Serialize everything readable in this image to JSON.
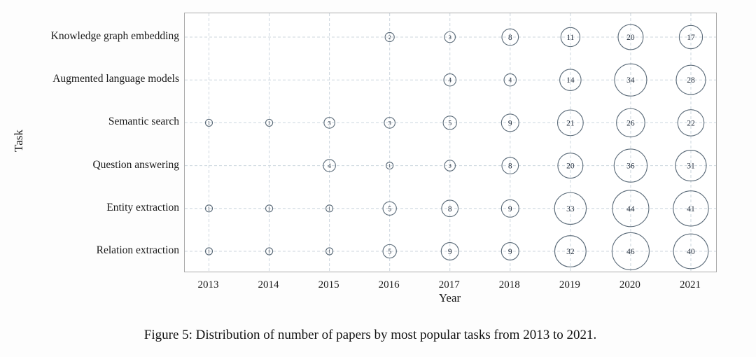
{
  "figure": {
    "caption": "Figure 5: Distribution of number of papers by most popular tasks from 2013 to 2021."
  },
  "chart_data": {
    "type": "scatter",
    "subtype": "bubble",
    "title": "",
    "xlabel": "Year",
    "ylabel": "Task",
    "x": [
      2013,
      2014,
      2015,
      2016,
      2017,
      2018,
      2019,
      2020,
      2021
    ],
    "series": [
      {
        "name": "Knowledge graph embedding",
        "values": [
          null,
          null,
          null,
          2,
          3,
          8,
          11,
          20,
          17
        ]
      },
      {
        "name": "Augmented language models",
        "values": [
          null,
          null,
          null,
          null,
          4,
          4,
          14,
          34,
          28
        ]
      },
      {
        "name": "Semantic search",
        "values": [
          1,
          1,
          3,
          3,
          5,
          9,
          21,
          26,
          22
        ]
      },
      {
        "name": "Question answering",
        "values": [
          null,
          null,
          4,
          1,
          3,
          8,
          20,
          36,
          31
        ]
      },
      {
        "name": "Entity extraction",
        "values": [
          1,
          1,
          1,
          5,
          8,
          9,
          33,
          44,
          41
        ]
      },
      {
        "name": "Relation extraction",
        "values": [
          1,
          1,
          1,
          5,
          9,
          9,
          32,
          46,
          40
        ]
      }
    ],
    "bubble_size_rule": "radius proportional to sqrt(value)",
    "grid": "on, dashed, both axes",
    "legend": "none",
    "colors": {
      "bubble_stroke": "#5a6a78",
      "bubble_fill": "none",
      "bubble_number": "#25303f",
      "grid_line": "#ccd6de",
      "plot_border": "#ababab",
      "text": "#1a1a1a"
    }
  }
}
